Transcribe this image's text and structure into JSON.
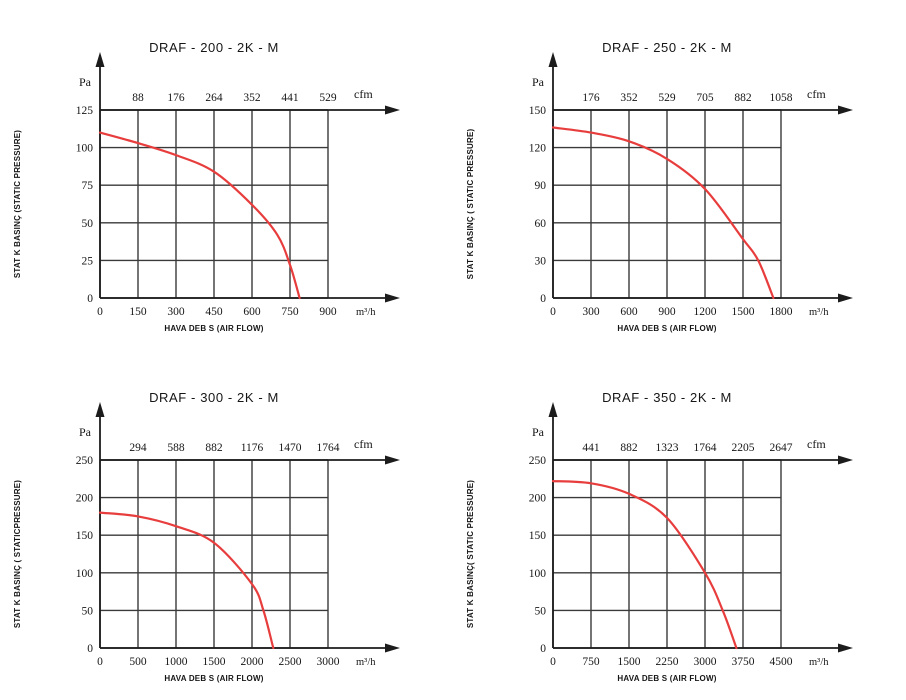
{
  "colors": {
    "background": "#ffffff",
    "grid": "#3a3a3a",
    "axis": "#1c1c1c",
    "curve": "#e83d3d",
    "text": "#161616"
  },
  "chart_data": [
    {
      "type": "line",
      "title": "DRAF - 200 - 2K - M",
      "ylabel": "STAT K BASINÇ (STATIC PRESSURE)",
      "xlabel": "HAVA DEB S  (AIR FLOW)",
      "y_unit": "Pa",
      "x_unit": "m³/h",
      "top_unit": "cfm",
      "ylim": [
        0,
        125
      ],
      "xlim": [
        0,
        900
      ],
      "y_ticks": [
        0,
        25,
        50,
        75,
        100,
        125
      ],
      "x_ticks": [
        0,
        150,
        300,
        450,
        600,
        750,
        900
      ],
      "top_ticks": [
        88,
        176,
        264,
        352,
        441,
        529
      ],
      "grid": true,
      "legend": "none",
      "series": [
        {
          "name": "static-pressure-curve",
          "points": [
            [
              0,
              110
            ],
            [
              150,
              103
            ],
            [
              300,
              95
            ],
            [
              450,
              84
            ],
            [
              600,
              62
            ],
            [
              700,
              42
            ],
            [
              750,
              22
            ],
            [
              788,
              0
            ]
          ]
        }
      ]
    },
    {
      "type": "line",
      "title": "DRAF - 250 - 2K - M",
      "ylabel": "STAT K BASINÇ ( STATIC PRESSURE)",
      "xlabel": "HAVA DEB S  (AIR FLOW)",
      "y_unit": "Pa",
      "x_unit": "m³/h",
      "top_unit": "cfm",
      "ylim": [
        0,
        150
      ],
      "xlim": [
        0,
        1800
      ],
      "y_ticks": [
        0,
        30,
        60,
        90,
        120,
        150
      ],
      "x_ticks": [
        0,
        300,
        600,
        900,
        1200,
        1500,
        1800
      ],
      "top_ticks": [
        176,
        352,
        529,
        705,
        882,
        1058
      ],
      "grid": true,
      "legend": "none",
      "series": [
        {
          "name": "static-pressure-curve",
          "points": [
            [
              0,
              136
            ],
            [
              300,
              132
            ],
            [
              600,
              125
            ],
            [
              900,
              111
            ],
            [
              1200,
              87
            ],
            [
              1500,
              47
            ],
            [
              1620,
              30
            ],
            [
              1740,
              0
            ]
          ]
        }
      ]
    },
    {
      "type": "line",
      "title": "DRAF - 300 - 2K - M",
      "ylabel": "STAT K BASINÇ ( STATICPRESSURE)",
      "xlabel": "HAVA DEB S  (AIR FLOW)",
      "y_unit": "Pa",
      "x_unit": "m³/h",
      "top_unit": "cfm",
      "ylim": [
        0,
        250
      ],
      "xlim": [
        0,
        3000
      ],
      "y_ticks": [
        0,
        50,
        100,
        150,
        200,
        250
      ],
      "x_ticks": [
        0,
        500,
        1000,
        1500,
        2000,
        2500,
        3000
      ],
      "top_ticks": [
        294,
        588,
        882,
        1176,
        1470,
        1764
      ],
      "grid": true,
      "legend": "none",
      "series": [
        {
          "name": "static-pressure-curve",
          "points": [
            [
              0,
              180
            ],
            [
              500,
              175
            ],
            [
              1000,
              162
            ],
            [
              1500,
              140
            ],
            [
              2000,
              85
            ],
            [
              2150,
              50
            ],
            [
              2280,
              0
            ]
          ]
        }
      ]
    },
    {
      "type": "line",
      "title": "DRAF - 350 - 2K - M",
      "ylabel": "STAT K BASINÇ( STATIC PRESSURE)",
      "xlabel": "HAVA DEB S  (AIR FLOW)",
      "y_unit": "Pa",
      "x_unit": "m³/h",
      "top_unit": "cfm",
      "ylim": [
        0,
        250
      ],
      "xlim": [
        0,
        4500
      ],
      "y_ticks": [
        0,
        50,
        100,
        150,
        200,
        250
      ],
      "x_ticks": [
        0,
        750,
        1500,
        2250,
        3000,
        3750,
        4500
      ],
      "top_ticks": [
        441,
        882,
        1323,
        1764,
        2205,
        2647
      ],
      "grid": true,
      "legend": "none",
      "series": [
        {
          "name": "static-pressure-curve",
          "points": [
            [
              0,
              222
            ],
            [
              750,
              219
            ],
            [
              1500,
              205
            ],
            [
              2250,
              173
            ],
            [
              3000,
              100
            ],
            [
              3350,
              50
            ],
            [
              3620,
              0
            ]
          ]
        }
      ]
    }
  ]
}
